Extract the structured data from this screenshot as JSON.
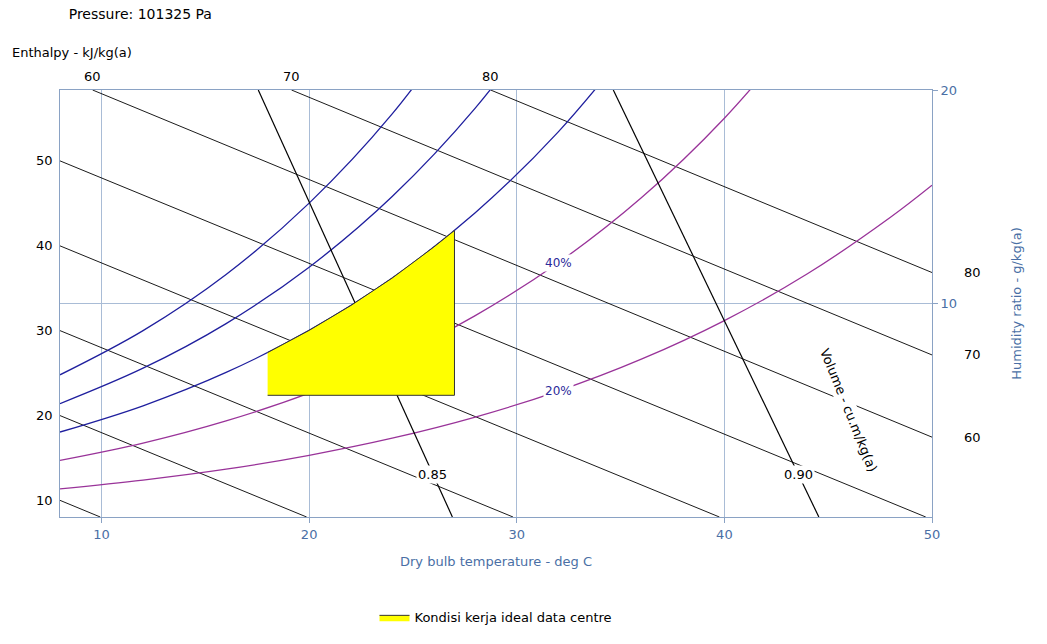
{
  "chart_data": {
    "type": "line",
    "title": "Pressure: 101325 Pa",
    "x_label": "Dry bulb temperature - deg C",
    "y_label": "Humidity ratio - g/kg(a)",
    "enthalpy_label": "Enthalpy - kJ/kg(a)",
    "volume_label": "Volume - cu.m/kg(a)",
    "xlim": [
      8,
      50
    ],
    "xticks": [
      10,
      20,
      30,
      40,
      50
    ],
    "ylim": [
      0,
      20
    ],
    "yticks": [
      10,
      20
    ],
    "grid": true,
    "legend": "bottom",
    "enthalpy_lines": [
      {
        "value": 10,
        "color": "#000000",
        "x": [
          8,
          9.94
        ],
        "values": [
          0.78,
          0
        ]
      },
      {
        "value": 20,
        "color": "#000000",
        "x": [
          8,
          19.88
        ],
        "values": [
          4.75,
          0
        ]
      },
      {
        "value": 30,
        "color": "#000000",
        "x": [
          8,
          29.82
        ],
        "values": [
          8.73,
          0
        ]
      },
      {
        "value": 40,
        "color": "#000000",
        "x": [
          8,
          39.76
        ],
        "values": [
          12.7,
          0
        ]
      },
      {
        "value": 50,
        "color": "#000000",
        "x": [
          8,
          49.7
        ],
        "values": [
          16.68,
          0
        ]
      },
      {
        "value": 60,
        "color": "#000000",
        "x": [
          9.57,
          50
        ],
        "values": [
          20,
          3.74
        ]
      },
      {
        "value": 70,
        "color": "#000000",
        "x": [
          19.15,
          50
        ],
        "values": [
          20,
          7.59
        ]
      },
      {
        "value": 80,
        "color": "#000000",
        "x": [
          28.74,
          50
        ],
        "values": [
          20,
          11.45
        ]
      }
    ],
    "rh_curves": [
      {
        "label": "20%",
        "color": "#993399",
        "x": [
          8,
          12,
          16,
          20,
          24,
          28,
          32,
          36,
          40,
          44,
          48,
          50
        ],
        "values": [
          1.32,
          1.73,
          2.24,
          2.89,
          3.69,
          4.68,
          5.9,
          7.39,
          9.2,
          11.39,
          14.04,
          15.54
        ]
      },
      {
        "label": "40%",
        "color": "#993399",
        "x": [
          8,
          12,
          16,
          20,
          24,
          28,
          32,
          36,
          40,
          44
        ],
        "values": [
          2.65,
          3.46,
          4.5,
          5.8,
          7.42,
          9.43,
          11.91,
          14.95,
          18.68,
          23.21
        ]
      },
      {
        "color": "#1f1f9e",
        "x": [
          8,
          12,
          16,
          20,
          24,
          28,
          32,
          36
        ],
        "values": [
          3.98,
          5.21,
          6.77,
          8.74,
          11.19,
          14.25,
          18.04,
          22.7
        ]
      },
      {
        "color": "#1f1f9e",
        "x": [
          8,
          12,
          16,
          20,
          24,
          28,
          32
        ],
        "values": [
          5.31,
          6.97,
          9.06,
          11.7,
          15.01,
          19.15,
          24.28
        ]
      },
      {
        "color": "#1f1f9e",
        "x": [
          8,
          12,
          16,
          20,
          24,
          28
        ],
        "values": [
          6.66,
          8.73,
          11.36,
          14.7,
          18.88,
          24.12
        ]
      }
    ],
    "volume_lines": [
      {
        "label": "0.85",
        "color": "#000000",
        "x": [
          17.55,
          26.9
        ],
        "values": [
          20,
          0
        ]
      },
      {
        "label": "0.90",
        "color": "#000000",
        "x": [
          34.65,
          44.55
        ],
        "values": [
          20,
          0
        ]
      }
    ],
    "series": [
      {
        "name": "Kondisi kerja ideal data centre",
        "type": "area",
        "color": "#ffff00",
        "x": [
          18,
          27,
          27,
          26,
          24,
          22,
          20,
          18
        ],
        "values": [
          5.7,
          5.7,
          13.42,
          12.64,
          11.19,
          9.9,
          8.74,
          7.7
        ]
      }
    ]
  }
}
